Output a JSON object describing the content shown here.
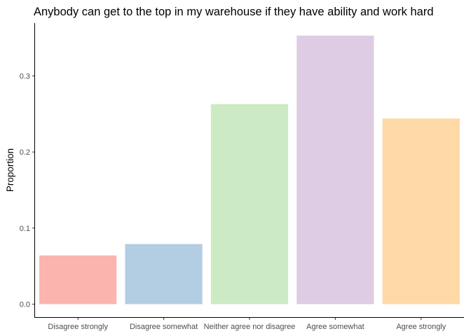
{
  "chart_data": {
    "type": "bar",
    "title": "Anybody can get to the top in my warehouse if they have ability and work hard",
    "xlabel": "",
    "ylabel": "Proportion",
    "categories": [
      "Disagree strongly",
      "Disagree somewhat",
      "Neither agree nor disagree",
      "Agree somewhat",
      "Agree strongly"
    ],
    "values": [
      0.064,
      0.079,
      0.263,
      0.353,
      0.244
    ],
    "colors": [
      "#FBB4AE",
      "#B3CDE3",
      "#CCEBC5",
      "#DECBE4",
      "#FED9A6"
    ],
    "ylim": [
      -0.017,
      0.37
    ],
    "yticks": [
      0.0,
      0.1,
      0.2,
      0.3
    ],
    "ytick_labels": [
      "0.0",
      "0.1",
      "0.2",
      "0.3"
    ],
    "grid": false,
    "legend": "none"
  }
}
